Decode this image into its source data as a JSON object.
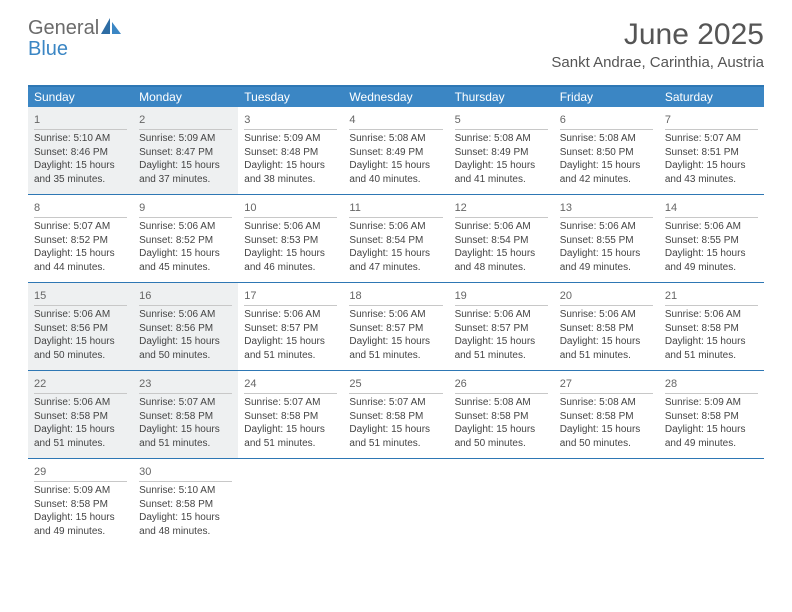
{
  "logo": {
    "general": "General",
    "blue": "Blue"
  },
  "title": "June 2025",
  "location": "Sankt Andrae, Carinthia, Austria",
  "colors": {
    "header_bar": "#3b86c4",
    "rule": "#2e77b4",
    "shaded_bg": "#eef0f1",
    "text": "#444444",
    "logo_gray": "#6b6b6b",
    "logo_blue": "#3b86c4"
  },
  "weekdays": [
    "Sunday",
    "Monday",
    "Tuesday",
    "Wednesday",
    "Thursday",
    "Friday",
    "Saturday"
  ],
  "weeks": [
    [
      {
        "n": "1",
        "shaded": true,
        "sr": "Sunrise: 5:10 AM",
        "ss": "Sunset: 8:46 PM",
        "d1": "Daylight: 15 hours",
        "d2": "and 35 minutes."
      },
      {
        "n": "2",
        "shaded": true,
        "sr": "Sunrise: 5:09 AM",
        "ss": "Sunset: 8:47 PM",
        "d1": "Daylight: 15 hours",
        "d2": "and 37 minutes."
      },
      {
        "n": "3",
        "shaded": false,
        "sr": "Sunrise: 5:09 AM",
        "ss": "Sunset: 8:48 PM",
        "d1": "Daylight: 15 hours",
        "d2": "and 38 minutes."
      },
      {
        "n": "4",
        "shaded": false,
        "sr": "Sunrise: 5:08 AM",
        "ss": "Sunset: 8:49 PM",
        "d1": "Daylight: 15 hours",
        "d2": "and 40 minutes."
      },
      {
        "n": "5",
        "shaded": false,
        "sr": "Sunrise: 5:08 AM",
        "ss": "Sunset: 8:49 PM",
        "d1": "Daylight: 15 hours",
        "d2": "and 41 minutes."
      },
      {
        "n": "6",
        "shaded": false,
        "sr": "Sunrise: 5:08 AM",
        "ss": "Sunset: 8:50 PM",
        "d1": "Daylight: 15 hours",
        "d2": "and 42 minutes."
      },
      {
        "n": "7",
        "shaded": false,
        "sr": "Sunrise: 5:07 AM",
        "ss": "Sunset: 8:51 PM",
        "d1": "Daylight: 15 hours",
        "d2": "and 43 minutes."
      }
    ],
    [
      {
        "n": "8",
        "shaded": false,
        "sr": "Sunrise: 5:07 AM",
        "ss": "Sunset: 8:52 PM",
        "d1": "Daylight: 15 hours",
        "d2": "and 44 minutes."
      },
      {
        "n": "9",
        "shaded": false,
        "sr": "Sunrise: 5:06 AM",
        "ss": "Sunset: 8:52 PM",
        "d1": "Daylight: 15 hours",
        "d2": "and 45 minutes."
      },
      {
        "n": "10",
        "shaded": false,
        "sr": "Sunrise: 5:06 AM",
        "ss": "Sunset: 8:53 PM",
        "d1": "Daylight: 15 hours",
        "d2": "and 46 minutes."
      },
      {
        "n": "11",
        "shaded": false,
        "sr": "Sunrise: 5:06 AM",
        "ss": "Sunset: 8:54 PM",
        "d1": "Daylight: 15 hours",
        "d2": "and 47 minutes."
      },
      {
        "n": "12",
        "shaded": false,
        "sr": "Sunrise: 5:06 AM",
        "ss": "Sunset: 8:54 PM",
        "d1": "Daylight: 15 hours",
        "d2": "and 48 minutes."
      },
      {
        "n": "13",
        "shaded": false,
        "sr": "Sunrise: 5:06 AM",
        "ss": "Sunset: 8:55 PM",
        "d1": "Daylight: 15 hours",
        "d2": "and 49 minutes."
      },
      {
        "n": "14",
        "shaded": false,
        "sr": "Sunrise: 5:06 AM",
        "ss": "Sunset: 8:55 PM",
        "d1": "Daylight: 15 hours",
        "d2": "and 49 minutes."
      }
    ],
    [
      {
        "n": "15",
        "shaded": true,
        "sr": "Sunrise: 5:06 AM",
        "ss": "Sunset: 8:56 PM",
        "d1": "Daylight: 15 hours",
        "d2": "and 50 minutes."
      },
      {
        "n": "16",
        "shaded": true,
        "sr": "Sunrise: 5:06 AM",
        "ss": "Sunset: 8:56 PM",
        "d1": "Daylight: 15 hours",
        "d2": "and 50 minutes."
      },
      {
        "n": "17",
        "shaded": false,
        "sr": "Sunrise: 5:06 AM",
        "ss": "Sunset: 8:57 PM",
        "d1": "Daylight: 15 hours",
        "d2": "and 51 minutes."
      },
      {
        "n": "18",
        "shaded": false,
        "sr": "Sunrise: 5:06 AM",
        "ss": "Sunset: 8:57 PM",
        "d1": "Daylight: 15 hours",
        "d2": "and 51 minutes."
      },
      {
        "n": "19",
        "shaded": false,
        "sr": "Sunrise: 5:06 AM",
        "ss": "Sunset: 8:57 PM",
        "d1": "Daylight: 15 hours",
        "d2": "and 51 minutes."
      },
      {
        "n": "20",
        "shaded": false,
        "sr": "Sunrise: 5:06 AM",
        "ss": "Sunset: 8:58 PM",
        "d1": "Daylight: 15 hours",
        "d2": "and 51 minutes."
      },
      {
        "n": "21",
        "shaded": false,
        "sr": "Sunrise: 5:06 AM",
        "ss": "Sunset: 8:58 PM",
        "d1": "Daylight: 15 hours",
        "d2": "and 51 minutes."
      }
    ],
    [
      {
        "n": "22",
        "shaded": true,
        "sr": "Sunrise: 5:06 AM",
        "ss": "Sunset: 8:58 PM",
        "d1": "Daylight: 15 hours",
        "d2": "and 51 minutes."
      },
      {
        "n": "23",
        "shaded": true,
        "sr": "Sunrise: 5:07 AM",
        "ss": "Sunset: 8:58 PM",
        "d1": "Daylight: 15 hours",
        "d2": "and 51 minutes."
      },
      {
        "n": "24",
        "shaded": false,
        "sr": "Sunrise: 5:07 AM",
        "ss": "Sunset: 8:58 PM",
        "d1": "Daylight: 15 hours",
        "d2": "and 51 minutes."
      },
      {
        "n": "25",
        "shaded": false,
        "sr": "Sunrise: 5:07 AM",
        "ss": "Sunset: 8:58 PM",
        "d1": "Daylight: 15 hours",
        "d2": "and 51 minutes."
      },
      {
        "n": "26",
        "shaded": false,
        "sr": "Sunrise: 5:08 AM",
        "ss": "Sunset: 8:58 PM",
        "d1": "Daylight: 15 hours",
        "d2": "and 50 minutes."
      },
      {
        "n": "27",
        "shaded": false,
        "sr": "Sunrise: 5:08 AM",
        "ss": "Sunset: 8:58 PM",
        "d1": "Daylight: 15 hours",
        "d2": "and 50 minutes."
      },
      {
        "n": "28",
        "shaded": false,
        "sr": "Sunrise: 5:09 AM",
        "ss": "Sunset: 8:58 PM",
        "d1": "Daylight: 15 hours",
        "d2": "and 49 minutes."
      }
    ],
    [
      {
        "n": "29",
        "shaded": false,
        "sr": "Sunrise: 5:09 AM",
        "ss": "Sunset: 8:58 PM",
        "d1": "Daylight: 15 hours",
        "d2": "and 49 minutes."
      },
      {
        "n": "30",
        "shaded": false,
        "sr": "Sunrise: 5:10 AM",
        "ss": "Sunset: 8:58 PM",
        "d1": "Daylight: 15 hours",
        "d2": "and 48 minutes."
      },
      null,
      null,
      null,
      null,
      null
    ]
  ]
}
